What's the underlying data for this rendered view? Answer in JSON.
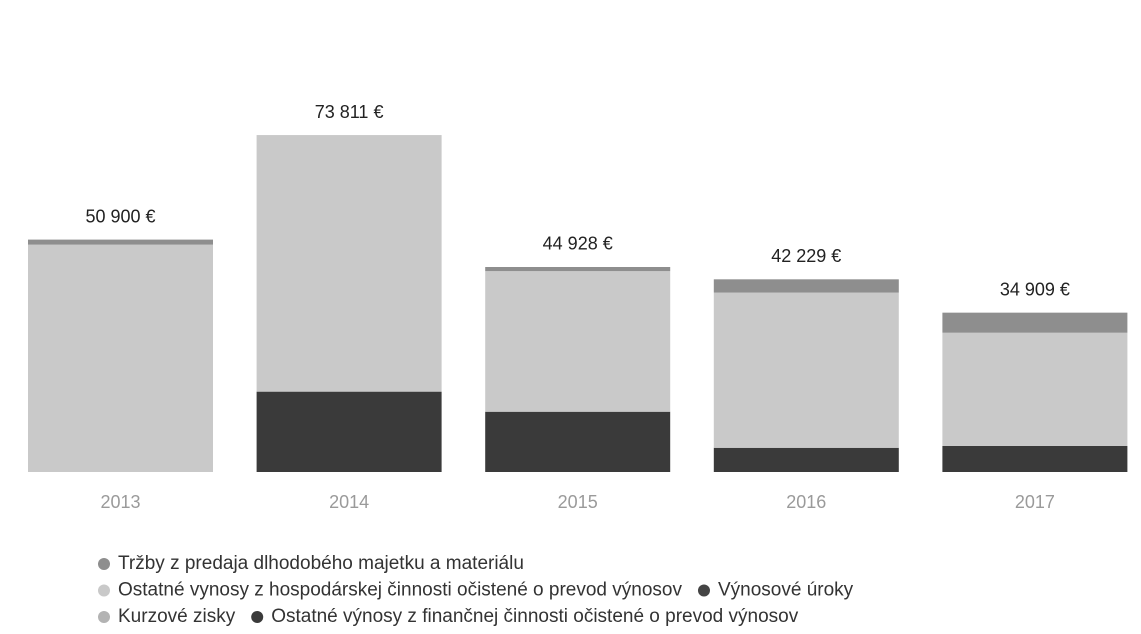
{
  "chart_data": {
    "type": "stacked_bar",
    "categories": [
      "2013",
      "2014",
      "2015",
      "2016",
      "2017"
    ],
    "totals": [
      50900,
      73811,
      44928,
      42229,
      34909
    ],
    "total_labels": [
      "50 900 €",
      "73 811 €",
      "44 928 €",
      "42 229 €",
      "34 909 €"
    ],
    "series": [
      {
        "name": "Tržby z predaja dlhodobého majetku a materiálu",
        "color": "#8e8e8e",
        "values": [
          1100,
          0,
          900,
          2900,
          4400
        ]
      },
      {
        "name": "Ostatné vynosy z hospodárskej činnosti očistené o prevod výnosov",
        "color": "#c9c9c9",
        "values": [
          49800,
          56200,
          30800,
          34000,
          24800
        ]
      },
      {
        "name": "Výnosové úroky",
        "color": "#444444",
        "values": [
          0,
          0,
          0,
          0,
          0
        ]
      },
      {
        "name": "Kurzové zisky",
        "color": "#b3b3b3",
        "values": [
          0,
          0,
          0,
          0,
          0
        ]
      },
      {
        "name": "Ostatné výnosy z finančnej činnosti očistené o prevod výnosov",
        "color": "#3a3a3a",
        "values": [
          0,
          17600,
          13200,
          5300,
          5700
        ]
      }
    ]
  }
}
